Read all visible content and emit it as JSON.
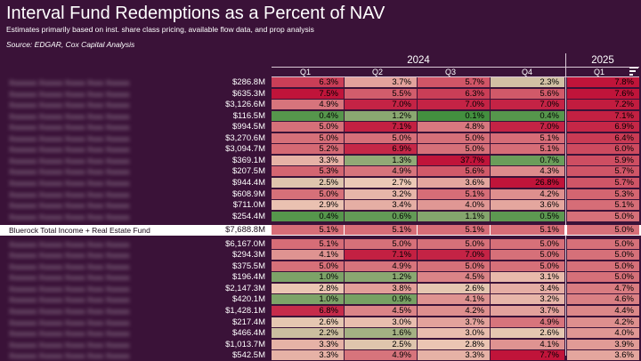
{
  "title": "Interval Fund Redemptions as a Percent of NAV",
  "subtitle": "Estimates primarily based on inst. share class pricing, available flow data, and prop analysis",
  "source": "Source: EDGAR, Cox Capital Analysis",
  "palette": {
    "background": "#3a1238",
    "low": "#3c8d3a",
    "mid": "#ecc9b6",
    "high": "#c0143a",
    "highlight_row": "#ffffff"
  },
  "sort_icon": "sort-descending-icon",
  "chart_data": {
    "type": "table",
    "years": [
      {
        "label": "2024",
        "span": 4
      },
      {
        "label": "2025",
        "span": 1
      }
    ],
    "columns": [
      "Q1",
      "Q2",
      "Q3",
      "Q4",
      "Q1"
    ],
    "value_unit": "% of NAV redeemed",
    "sort": "descending by 2025 Q1",
    "rows": [
      {
        "fund": "Fund name redacted",
        "redacted": true,
        "aum": "$286.8M",
        "values": [
          6.3,
          3.7,
          5.7,
          2.3,
          7.8
        ]
      },
      {
        "fund": "Fund name redacted",
        "redacted": true,
        "aum": "$635.3M",
        "values": [
          7.5,
          5.5,
          6.3,
          5.6,
          7.6
        ]
      },
      {
        "fund": "Fund name redacted",
        "redacted": true,
        "aum": "$3,126.6M",
        "values": [
          4.9,
          7.0,
          7.0,
          7.0,
          7.2
        ]
      },
      {
        "fund": "Fund name redacted",
        "redacted": true,
        "aum": "$116.5M",
        "values": [
          0.4,
          1.2,
          0.1,
          0.4,
          7.1
        ]
      },
      {
        "fund": "Fund name redacted",
        "redacted": true,
        "aum": "$994.5M",
        "values": [
          5.0,
          7.1,
          4.8,
          7.0,
          6.9
        ]
      },
      {
        "fund": "Fund name redacted",
        "redacted": true,
        "aum": "$3,270.6M",
        "values": [
          5.0,
          5.0,
          5.0,
          5.1,
          6.4
        ]
      },
      {
        "fund": "Fund name redacted",
        "redacted": true,
        "aum": "$3,094.7M",
        "values": [
          5.2,
          6.9,
          5.0,
          5.1,
          6.0
        ]
      },
      {
        "fund": "Fund name redacted",
        "redacted": true,
        "aum": "$369.1M",
        "values": [
          3.3,
          1.3,
          37.7,
          0.7,
          5.9
        ]
      },
      {
        "fund": "Fund name redacted",
        "redacted": true,
        "aum": "$207.5M",
        "values": [
          5.3,
          4.9,
          5.6,
          4.3,
          5.7
        ]
      },
      {
        "fund": "Fund name redacted",
        "redacted": true,
        "aum": "$944.4M",
        "values": [
          2.5,
          2.7,
          3.6,
          26.8,
          5.7
        ]
      },
      {
        "fund": "Fund name redacted",
        "redacted": true,
        "aum": "$608.9M",
        "values": [
          5.0,
          3.2,
          5.1,
          4.2,
          5.3
        ]
      },
      {
        "fund": "Fund name redacted",
        "redacted": true,
        "aum": "$711.0M",
        "values": [
          2.9,
          3.4,
          4.0,
          3.6,
          5.1
        ]
      },
      {
        "fund": "Fund name redacted",
        "redacted": true,
        "aum": "$254.4M",
        "values": [
          0.4,
          0.6,
          1.1,
          0.5,
          5.0
        ]
      },
      {
        "fund": "Bluerock Total Income + Real Estate Fund",
        "redacted": false,
        "highlight": true,
        "aum": "$7,688.8M",
        "values": [
          5.1,
          5.1,
          5.1,
          5.1,
          5.0
        ]
      },
      {
        "fund": "Fund name redacted",
        "redacted": true,
        "aum": "$6,167.0M",
        "values": [
          5.1,
          5.0,
          5.0,
          5.0,
          5.0
        ]
      },
      {
        "fund": "Fund name redacted",
        "redacted": true,
        "aum": "$294.3M",
        "values": [
          4.1,
          7.1,
          7.0,
          5.0,
          5.0
        ]
      },
      {
        "fund": "Fund name redacted",
        "redacted": true,
        "aum": "$375.5M",
        "values": [
          5.0,
          4.9,
          5.0,
          5.0,
          5.0
        ]
      },
      {
        "fund": "Fund name redacted",
        "redacted": true,
        "aum": "$196.4M",
        "values": [
          1.0,
          1.2,
          4.5,
          3.1,
          5.0
        ]
      },
      {
        "fund": "Fund name redacted",
        "redacted": true,
        "aum": "$2,147.3M",
        "values": [
          2.8,
          3.8,
          2.6,
          3.4,
          4.7
        ]
      },
      {
        "fund": "Fund name redacted",
        "redacted": true,
        "aum": "$420.1M",
        "values": [
          1.0,
          0.9,
          4.1,
          3.2,
          4.6
        ]
      },
      {
        "fund": "Fund name redacted",
        "redacted": true,
        "aum": "$1,428.1M",
        "values": [
          6.8,
          4.5,
          4.2,
          3.7,
          4.4
        ]
      },
      {
        "fund": "Fund name redacted",
        "redacted": true,
        "aum": "$217.4M",
        "values": [
          2.6,
          3.0,
          3.7,
          4.9,
          4.2
        ]
      },
      {
        "fund": "Fund name redacted",
        "redacted": true,
        "aum": "$466.4M",
        "values": [
          2.2,
          1.6,
          3.0,
          2.6,
          4.0
        ]
      },
      {
        "fund": "Fund name redacted",
        "redacted": true,
        "aum": "$1,013.7M",
        "values": [
          3.3,
          2.5,
          2.8,
          4.1,
          3.9
        ]
      },
      {
        "fund": "Fund name redacted",
        "redacted": true,
        "aum": "$542.5M",
        "values": [
          3.3,
          4.9,
          3.3,
          7.7,
          3.6
        ]
      }
    ]
  }
}
